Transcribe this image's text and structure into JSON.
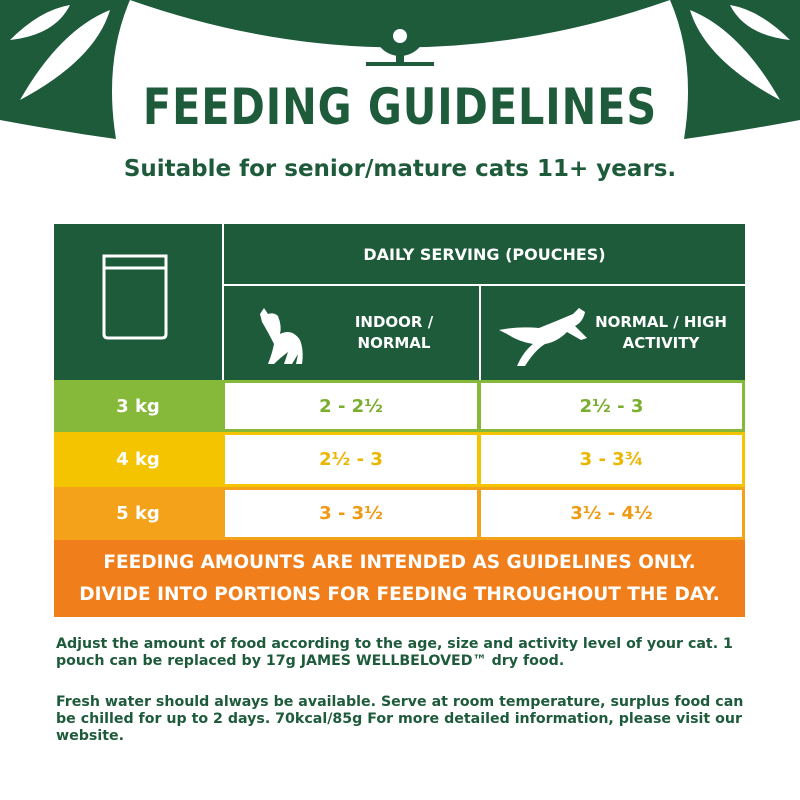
{
  "header": {
    "title": "FEEDING GUIDELINES",
    "subtitle": "Suitable for senior/mature cats 11+ years."
  },
  "table": {
    "group_header": "DAILY SERVING (POUCHES)",
    "columns": [
      "INDOOR / NORMAL",
      "NORMAL / HIGH ACTIVITY"
    ],
    "rows": [
      [
        "3 kg",
        "2 - 2½",
        "2½ - 3"
      ],
      [
        "4 kg",
        "2½ - 3",
        "3 - 3¾"
      ],
      [
        "5 kg",
        "3 - 3½",
        "3½ - 4½"
      ]
    ]
  },
  "notice": [
    "FEEDING AMOUNTS ARE INTENDED AS GUIDELINES ONLY.",
    "DIVIDE INTO PORTIONS FOR FEEDING THROUGHOUT THE DAY."
  ],
  "footer": [
    "Adjust the amount of food according to the age, size and activity level of your cat. 1 pouch can be replaced by 17g JAMES WELLBELOVED™ dry food.",
    "Fresh water should always be available. Serve at room temperature, surplus food can be chilled for up to 2 days. 70kcal/85g For more detailed information, please visit our website."
  ]
}
